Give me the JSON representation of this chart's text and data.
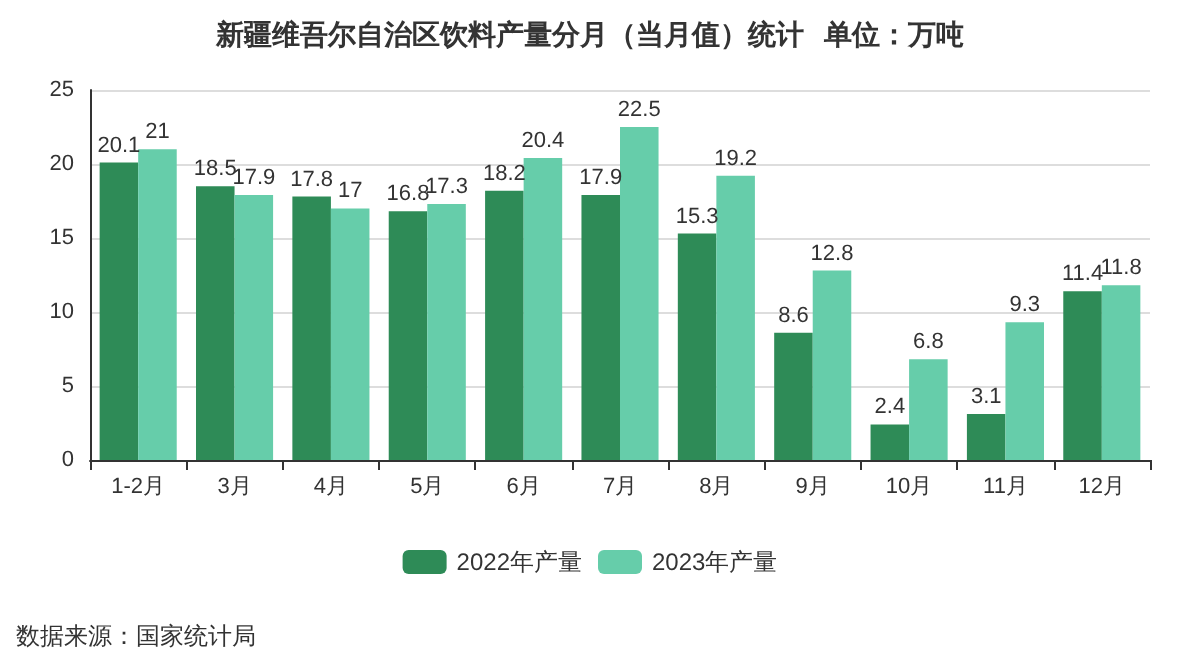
{
  "chart_data": {
    "type": "bar",
    "title": "新疆维吾尔自治区饮料产量分月（当月值）统计  单位：万吨",
    "categories": [
      "1-2月",
      "3月",
      "4月",
      "5月",
      "6月",
      "7月",
      "8月",
      "9月",
      "10月",
      "11月",
      "12月"
    ],
    "series": [
      {
        "name": "2022年产量",
        "color": "#2e8b57",
        "values": [
          20.1,
          18.5,
          17.8,
          16.8,
          18.2,
          17.9,
          15.3,
          8.6,
          2.4,
          3.1,
          11.4
        ]
      },
      {
        "name": "2023年产量",
        "color": "#66cdaa",
        "values": [
          21,
          17.9,
          17,
          17.3,
          20.4,
          22.5,
          19.2,
          12.8,
          6.8,
          9.3,
          11.8
        ]
      }
    ],
    "ylim": [
      0,
      25
    ],
    "yticks": [
      0,
      5,
      10,
      15,
      20,
      25
    ],
    "grid": "y",
    "legend": "bottom",
    "data_labels": true,
    "annotations": [
      "数据来源：国家统计局"
    ]
  }
}
